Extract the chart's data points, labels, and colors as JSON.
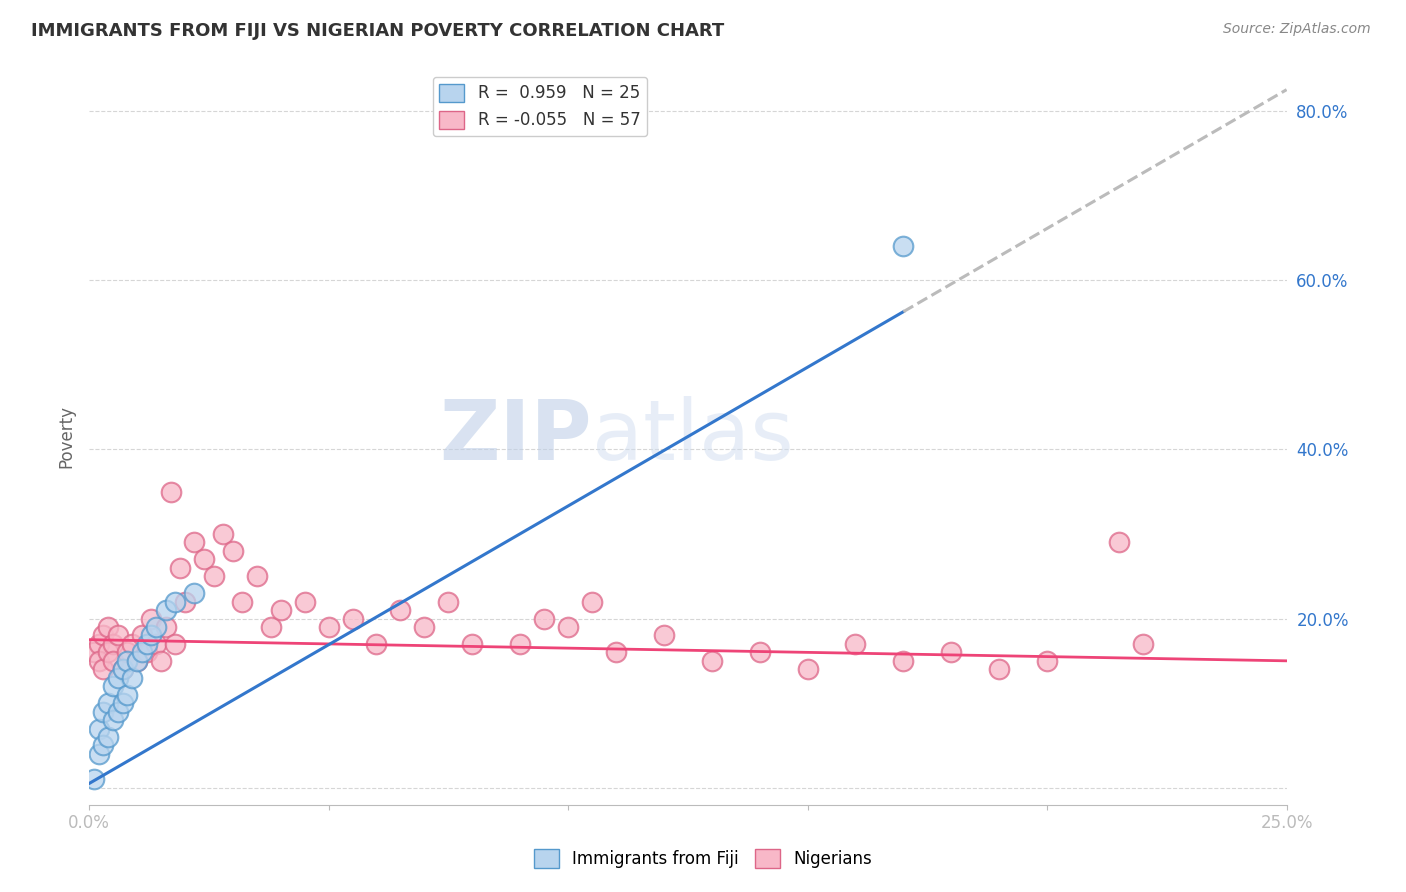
{
  "title": "IMMIGRANTS FROM FIJI VS NIGERIAN POVERTY CORRELATION CHART",
  "source": "Source: ZipAtlas.com",
  "ylabel": "Poverty",
  "xlim": [
    0.0,
    0.25
  ],
  "ylim": [
    -0.02,
    0.85
  ],
  "xticks": [
    0.0,
    0.05,
    0.1,
    0.15,
    0.2,
    0.25
  ],
  "yticks": [
    0.0,
    0.2,
    0.4,
    0.6,
    0.8
  ],
  "ytick_labels": [
    "",
    "20.0%",
    "40.0%",
    "60.0%",
    "80.0%"
  ],
  "xtick_labels": [
    "0.0%",
    "",
    "",
    "",
    "",
    "25.0%"
  ],
  "background_color": "#ffffff",
  "grid_color": "#cccccc",
  "fiji_color": "#b8d4ee",
  "fiji_edge_color": "#5599cc",
  "nigerian_color": "#f8b8c8",
  "nigerian_edge_color": "#dd6688",
  "fiji_R": 0.959,
  "fiji_N": 25,
  "nigerian_R": -0.055,
  "nigerian_N": 57,
  "fiji_line_color": "#3377cc",
  "nigerian_line_color": "#ee4477",
  "dashed_line_color": "#bbbbbb",
  "watermark_zip": "ZIP",
  "watermark_atlas": "atlas",
  "fiji_scatter_x": [
    0.001,
    0.002,
    0.002,
    0.003,
    0.003,
    0.004,
    0.004,
    0.005,
    0.005,
    0.006,
    0.006,
    0.007,
    0.007,
    0.008,
    0.008,
    0.009,
    0.01,
    0.011,
    0.012,
    0.013,
    0.014,
    0.016,
    0.018,
    0.022,
    0.17
  ],
  "fiji_scatter_y": [
    0.01,
    0.04,
    0.07,
    0.05,
    0.09,
    0.06,
    0.1,
    0.08,
    0.12,
    0.09,
    0.13,
    0.1,
    0.14,
    0.11,
    0.15,
    0.13,
    0.15,
    0.16,
    0.17,
    0.18,
    0.19,
    0.21,
    0.22,
    0.23,
    0.64
  ],
  "nigerian_scatter_x": [
    0.001,
    0.002,
    0.002,
    0.003,
    0.003,
    0.004,
    0.004,
    0.005,
    0.005,
    0.006,
    0.007,
    0.008,
    0.009,
    0.01,
    0.011,
    0.012,
    0.013,
    0.014,
    0.015,
    0.016,
    0.017,
    0.018,
    0.019,
    0.02,
    0.022,
    0.024,
    0.026,
    0.028,
    0.03,
    0.032,
    0.035,
    0.038,
    0.04,
    0.045,
    0.05,
    0.055,
    0.06,
    0.065,
    0.07,
    0.075,
    0.08,
    0.09,
    0.095,
    0.1,
    0.105,
    0.11,
    0.12,
    0.13,
    0.14,
    0.15,
    0.16,
    0.17,
    0.18,
    0.19,
    0.2,
    0.215,
    0.22
  ],
  "nigerian_scatter_y": [
    0.16,
    0.17,
    0.15,
    0.18,
    0.14,
    0.16,
    0.19,
    0.17,
    0.15,
    0.18,
    0.14,
    0.16,
    0.17,
    0.15,
    0.18,
    0.16,
    0.2,
    0.17,
    0.15,
    0.19,
    0.35,
    0.17,
    0.26,
    0.22,
    0.29,
    0.27,
    0.25,
    0.3,
    0.28,
    0.22,
    0.25,
    0.19,
    0.21,
    0.22,
    0.19,
    0.2,
    0.17,
    0.21,
    0.19,
    0.22,
    0.17,
    0.17,
    0.2,
    0.19,
    0.22,
    0.16,
    0.18,
    0.15,
    0.16,
    0.14,
    0.17,
    0.15,
    0.16,
    0.14,
    0.15,
    0.29,
    0.17
  ]
}
